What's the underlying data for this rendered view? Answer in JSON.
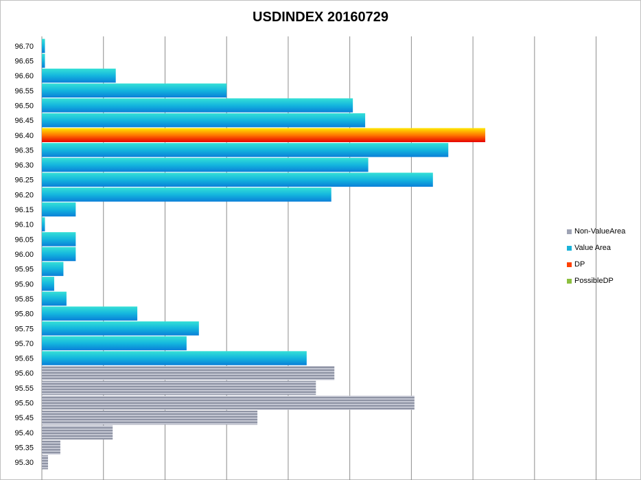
{
  "chart_data": {
    "type": "bar",
    "orientation": "horizontal",
    "title": "USDINDEX 20160729",
    "xlabel": "",
    "ylabel": "",
    "xlim": [
      0,
      9.35
    ],
    "grid": true,
    "legend_position": "right",
    "categories": [
      "96.70",
      "96.65",
      "96.60",
      "96.55",
      "96.50",
      "96.45",
      "96.40",
      "96.35",
      "96.30",
      "96.25",
      "96.20",
      "96.15",
      "96.10",
      "96.05",
      "96.00",
      "95.95",
      "95.90",
      "95.85",
      "95.80",
      "95.75",
      "95.70",
      "95.65",
      "95.60",
      "95.55",
      "95.50",
      "95.45",
      "95.40",
      "95.35",
      "95.30"
    ],
    "series": [
      {
        "name": "Non-ValueArea",
        "color": "#9ea3b4",
        "values": [
          0,
          0,
          0,
          0,
          0,
          0,
          0,
          0,
          0,
          0,
          0,
          0,
          0,
          0,
          0,
          0,
          0,
          0,
          0,
          0,
          0,
          0,
          4.75,
          4.45,
          6.05,
          3.5,
          1.15,
          0.3,
          0.1
        ]
      },
      {
        "name": "Value Area",
        "color": "#1ab2d9",
        "values": [
          0.05,
          0.05,
          1.2,
          3.0,
          5.05,
          5.25,
          0,
          6.6,
          5.3,
          6.35,
          4.7,
          0.55,
          0.05,
          0.55,
          0.55,
          0.35,
          0.2,
          0.4,
          1.55,
          2.55,
          2.35,
          4.3,
          0,
          0,
          0,
          0,
          0,
          0,
          0
        ]
      },
      {
        "name": "DP",
        "color": "#ff4000",
        "values": [
          0,
          0,
          0,
          0,
          0,
          0,
          7.2,
          0,
          0,
          0,
          0,
          0,
          0,
          0,
          0,
          0,
          0,
          0,
          0,
          0,
          0,
          0,
          0,
          0,
          0,
          0,
          0,
          0,
          0
        ]
      },
      {
        "name": "PossibleDP",
        "color": "#8cbf3f",
        "values": [
          0,
          0,
          0,
          0,
          0,
          0,
          0,
          0,
          0,
          0,
          0,
          0,
          0,
          0,
          0,
          0,
          0,
          0,
          0,
          0,
          0,
          0,
          0,
          0,
          0,
          0,
          0,
          0,
          0
        ]
      }
    ]
  }
}
